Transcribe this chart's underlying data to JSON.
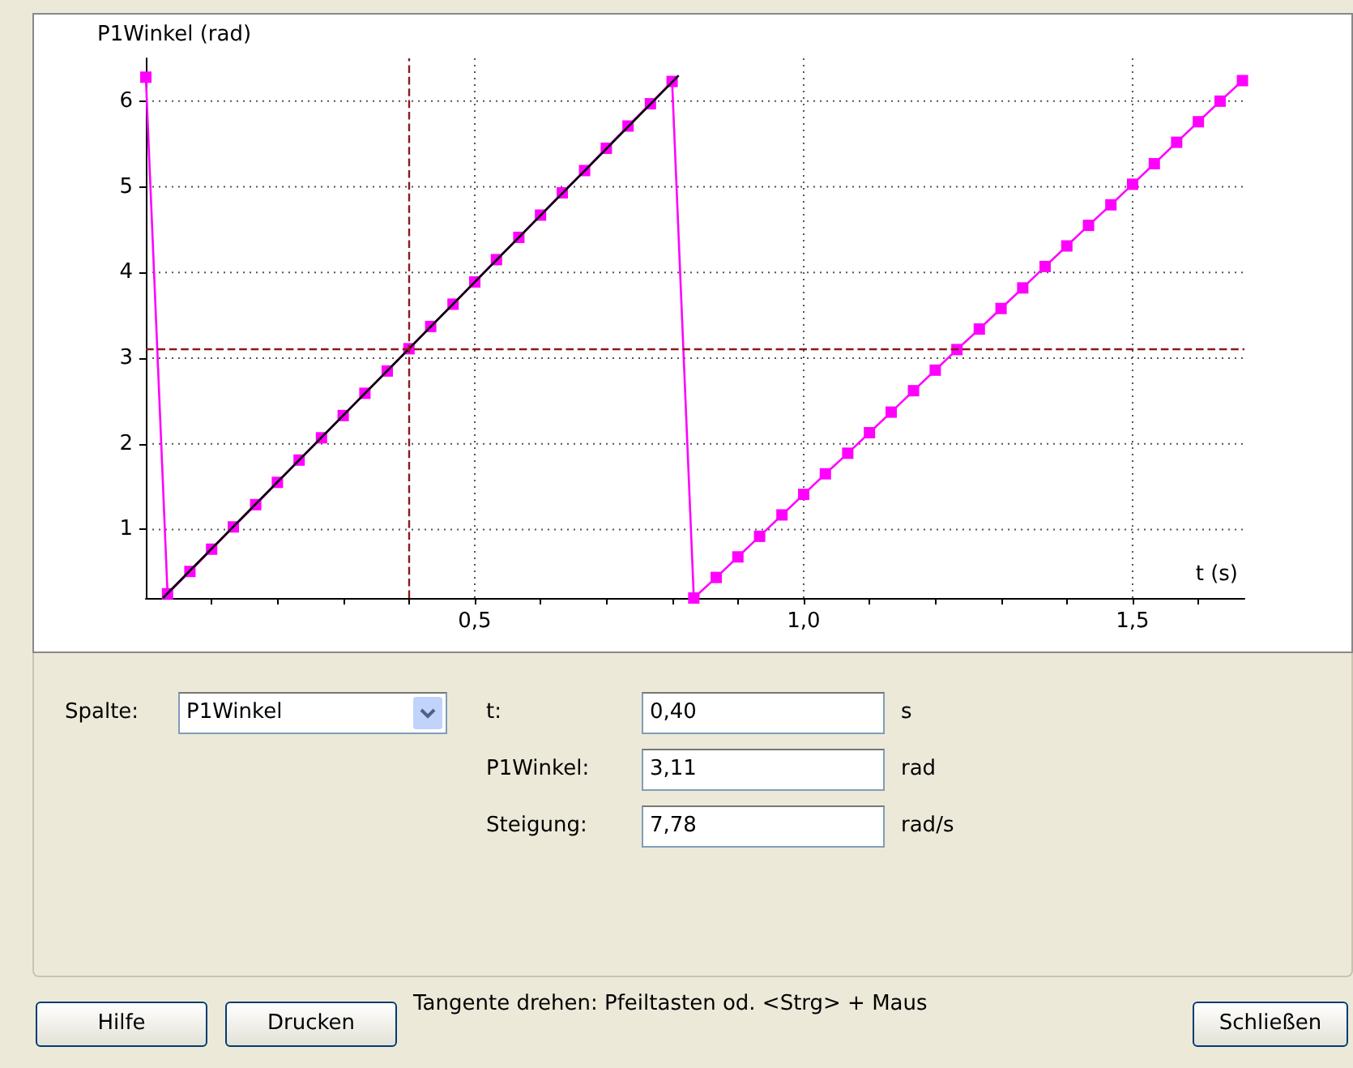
{
  "chart_data": {
    "type": "line",
    "ylabel": "P1Winkel (rad)",
    "xlabel": "t (s)",
    "xlim": [
      0,
      1.67
    ],
    "ylim": [
      0.2,
      6.5
    ],
    "xticks": [
      {
        "value": 0.1,
        "label": null
      },
      {
        "value": 0.2,
        "label": null
      },
      {
        "value": 0.3,
        "label": null
      },
      {
        "value": 0.4,
        "label": null
      },
      {
        "value": 0.5,
        "label": "0,5"
      },
      {
        "value": 0.6,
        "label": null
      },
      {
        "value": 0.7,
        "label": null
      },
      {
        "value": 0.8,
        "label": null
      },
      {
        "value": 0.9,
        "label": null
      },
      {
        "value": 1.0,
        "label": "1,0"
      },
      {
        "value": 1.1,
        "label": null
      },
      {
        "value": 1.2,
        "label": null
      },
      {
        "value": 1.3,
        "label": null
      },
      {
        "value": 1.4,
        "label": null
      },
      {
        "value": 1.5,
        "label": "1,5"
      },
      {
        "value": 1.6,
        "label": null
      }
    ],
    "yticks": [
      1,
      2,
      3,
      4,
      5,
      6
    ],
    "grid": true,
    "series": [
      {
        "color": "#ff00ff",
        "marker": "square",
        "x": [
          0,
          0.033,
          0.067,
          0.1,
          0.133,
          0.167,
          0.2,
          0.233,
          0.267,
          0.3,
          0.333,
          0.367,
          0.4,
          0.433,
          0.467,
          0.5,
          0.533,
          0.567,
          0.6,
          0.633,
          0.667,
          0.7,
          0.733,
          0.767,
          0.8,
          0.833,
          0.867,
          0.9,
          0.933,
          0.967,
          1.0,
          1.033,
          1.067,
          1.1,
          1.133,
          1.167,
          1.2,
          1.233,
          1.267,
          1.3,
          1.333,
          1.367,
          1.4,
          1.433,
          1.467,
          1.5,
          1.533,
          1.567,
          1.6,
          1.633,
          1.667
        ],
        "values": [
          6.28,
          0.25,
          0.51,
          0.77,
          1.03,
          1.29,
          1.55,
          1.81,
          2.07,
          2.33,
          2.59,
          2.85,
          3.11,
          3.37,
          3.63,
          3.89,
          4.15,
          4.41,
          4.67,
          4.93,
          5.19,
          5.45,
          5.71,
          5.97,
          6.23,
          0.2,
          0.44,
          0.68,
          0.92,
          1.17,
          1.41,
          1.65,
          1.89,
          2.13,
          2.37,
          2.62,
          2.86,
          3.1,
          3.34,
          3.58,
          3.82,
          4.07,
          4.31,
          4.55,
          4.79,
          5.03,
          5.27,
          5.52,
          5.76,
          6.0,
          6.24
        ]
      },
      {
        "type": "line",
        "color": "#000000",
        "marker": "none",
        "x": [
          0.026,
          0.81
        ],
        "values": [
          0.2,
          6.3
        ]
      }
    ],
    "ref_lines": [
      {
        "axis": "x",
        "value": 0.4,
        "color": "#8b1a1a",
        "line_style": "dashed"
      },
      {
        "axis": "y",
        "value": 3.11,
        "color": "#8b1a1a",
        "line_style": "dashed"
      }
    ],
    "annotations": [
      "Spalte:",
      "P1Winkel",
      "t:",
      "0,40",
      "s",
      "P1Winkel:",
      "3,11",
      "rad",
      "Steigung:",
      "7,78",
      "rad/s",
      "Hilfe",
      "Drucken",
      "Tangente drehen: Pfeiltasten od. <Strg> + Maus",
      "Schließen"
    ]
  }
}
